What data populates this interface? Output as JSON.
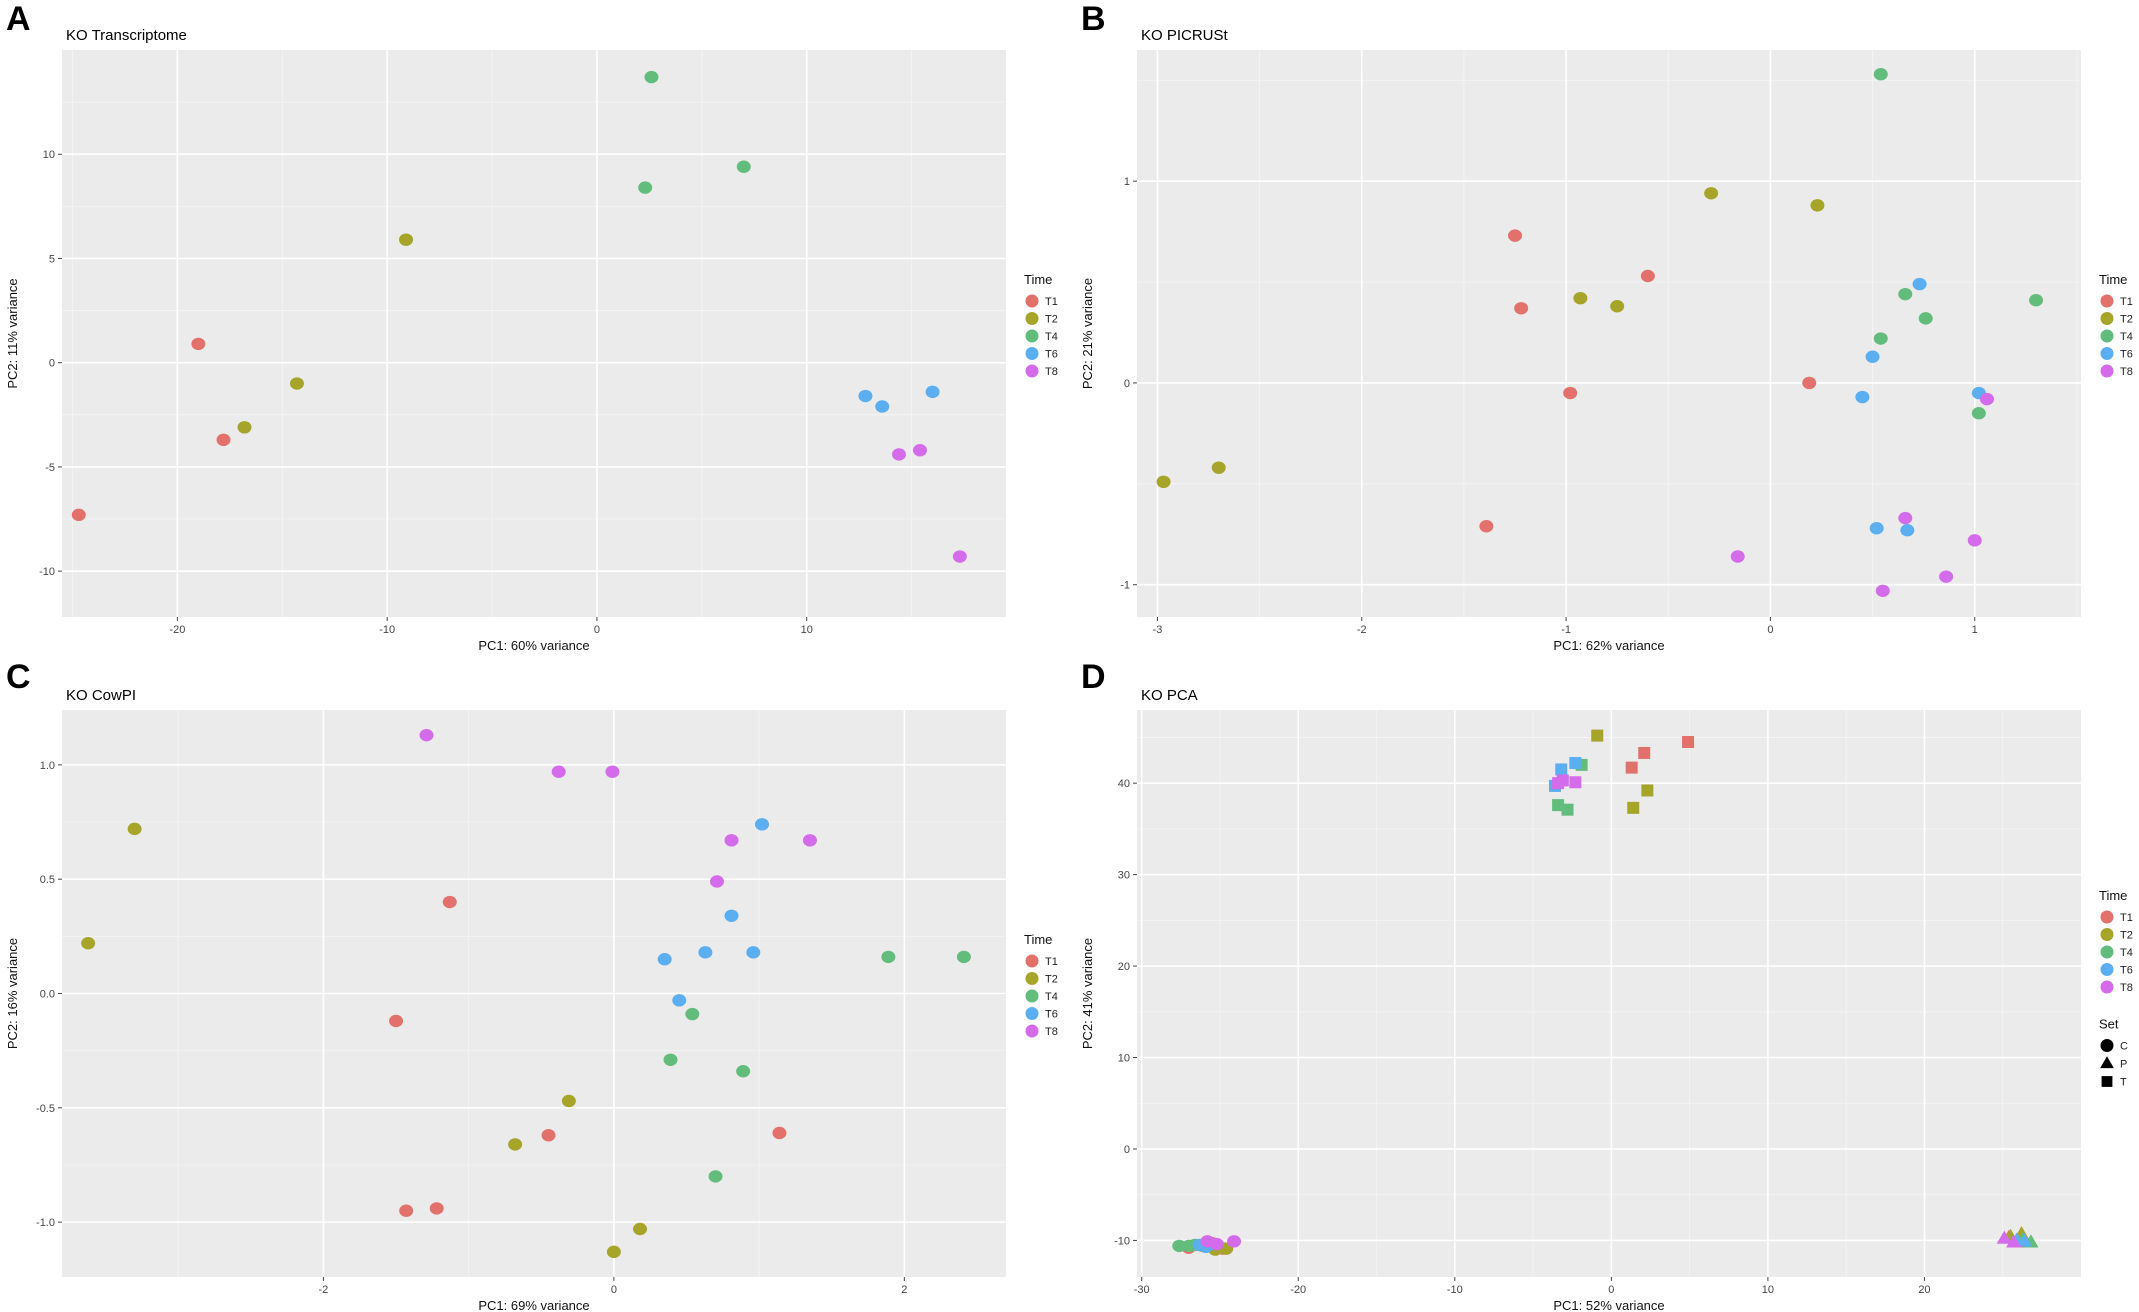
{
  "figure": {
    "letters": [
      "A",
      "B",
      "C",
      "D"
    ]
  },
  "colors": {
    "T1": "#E3716B",
    "T2": "#A7A42A",
    "T4": "#62BD7C",
    "T6": "#5BAEF0",
    "T8": "#D46BEA"
  },
  "chart_data": [
    {
      "type": "scatter",
      "title": "KO Transcriptome",
      "xlabel": "PC1: 60% variance",
      "ylabel": "PC2: 11% variance",
      "xlim": [
        -25.5,
        19.5
      ],
      "ylim": [
        -12.2,
        15
      ],
      "xticks": [
        -20,
        -10,
        0,
        10
      ],
      "yticks": [
        -10,
        -5,
        0,
        5,
        10
      ],
      "xtick_labels": [
        "-20",
        "-10",
        "0",
        "10"
      ],
      "ytick_labels": [
        "-10",
        "-5",
        "0",
        "5",
        "10"
      ],
      "legend": {
        "title": "Time",
        "entries": [
          "T1",
          "T2",
          "T4",
          "T6",
          "T8"
        ]
      },
      "series": [
        {
          "name": "T1",
          "points": [
            [
              -24.7,
              -7.3
            ],
            [
              -19,
              0.9
            ],
            [
              -17.8,
              -3.7
            ]
          ]
        },
        {
          "name": "T2",
          "points": [
            [
              -9.1,
              5.9
            ],
            [
              -14.3,
              -1
            ],
            [
              -16.8,
              -3.1
            ]
          ]
        },
        {
          "name": "T4",
          "points": [
            [
              2.6,
              13.7
            ],
            [
              7,
              9.4
            ],
            [
              2.3,
              8.4
            ]
          ]
        },
        {
          "name": "T6",
          "points": [
            [
              12.8,
              -1.6
            ],
            [
              13.6,
              -2.1
            ],
            [
              16,
              -1.4
            ]
          ]
        },
        {
          "name": "T8",
          "points": [
            [
              14.4,
              -4.4
            ],
            [
              15.4,
              -4.2
            ],
            [
              17.3,
              -9.3
            ]
          ]
        }
      ]
    },
    {
      "type": "scatter",
      "title": "KO PICRUSt",
      "xlabel": "PC1: 62% variance",
      "ylabel": "PC2: 21% variance",
      "xlim": [
        -3.1,
        1.52
      ],
      "ylim": [
        -1.16,
        1.65
      ],
      "xticks": [
        -3,
        -2,
        -1,
        0,
        1
      ],
      "yticks": [
        -1,
        0,
        1
      ],
      "xtick_labels": [
        "-3",
        "-2",
        "-1",
        "0",
        "1"
      ],
      "ytick_labels": [
        "-1",
        "0",
        "1"
      ],
      "legend": {
        "title": "Time",
        "entries": [
          "T1",
          "T2",
          "T4",
          "T6",
          "T8"
        ]
      },
      "series": [
        {
          "name": "T1",
          "points": [
            [
              -1.25,
              0.73
            ],
            [
              -1.22,
              0.37
            ],
            [
              -0.6,
              0.53
            ],
            [
              -0.98,
              -0.05
            ],
            [
              -1.39,
              -0.71
            ],
            [
              0.19,
              0
            ]
          ]
        },
        {
          "name": "T2",
          "points": [
            [
              -0.29,
              0.94
            ],
            [
              0.23,
              0.88
            ],
            [
              -0.93,
              0.42
            ],
            [
              -0.75,
              0.38
            ],
            [
              -2.97,
              -0.49
            ],
            [
              -2.7,
              -0.42
            ]
          ]
        },
        {
          "name": "T4",
          "points": [
            [
              0.54,
              1.53
            ],
            [
              0.66,
              0.44
            ],
            [
              0.76,
              0.32
            ],
            [
              0.54,
              0.22
            ],
            [
              1.3,
              0.41
            ],
            [
              1.02,
              -0.15
            ]
          ]
        },
        {
          "name": "T6",
          "points": [
            [
              0.73,
              0.49
            ],
            [
              0.5,
              0.13
            ],
            [
              0.45,
              -0.07
            ],
            [
              1.02,
              -0.05
            ],
            [
              0.52,
              -0.72
            ],
            [
              0.67,
              -0.73
            ]
          ]
        },
        {
          "name": "T8",
          "points": [
            [
              1.06,
              -0.08
            ],
            [
              0.66,
              -0.67
            ],
            [
              1,
              -0.78
            ],
            [
              -0.16,
              -0.86
            ],
            [
              0.86,
              -0.96
            ],
            [
              0.55,
              -1.03
            ]
          ]
        }
      ]
    },
    {
      "type": "scatter",
      "title": "KO CowPI",
      "xlabel": "PC1: 69% variance",
      "ylabel": "PC2: 16% variance",
      "xlim": [
        -3.8,
        2.7
      ],
      "ylim": [
        -1.24,
        1.24
      ],
      "xticks": [
        -2,
        0,
        2
      ],
      "yticks": [
        -1,
        -0.5,
        0,
        0.5,
        1
      ],
      "xtick_labels": [
        "-2",
        "0",
        "2"
      ],
      "ytick_labels": [
        "-1.0",
        "-0.5",
        "0.0",
        "0.5",
        "1.0"
      ],
      "legend": {
        "title": "Time",
        "entries": [
          "T1",
          "T2",
          "T4",
          "T6",
          "T8"
        ]
      },
      "series": [
        {
          "name": "T1",
          "points": [
            [
              -1.13,
              0.4
            ],
            [
              -1.5,
              -0.12
            ],
            [
              -0.45,
              -0.62
            ],
            [
              1.14,
              -0.61
            ],
            [
              -1.43,
              -0.95
            ],
            [
              -1.22,
              -0.94
            ]
          ]
        },
        {
          "name": "T2",
          "points": [
            [
              -3.3,
              0.72
            ],
            [
              -3.62,
              0.22
            ],
            [
              -0.31,
              -0.47
            ],
            [
              -0.68,
              -0.66
            ],
            [
              0.18,
              -1.03
            ],
            [
              0,
              -1.13
            ]
          ]
        },
        {
          "name": "T4",
          "points": [
            [
              1.89,
              0.16
            ],
            [
              2.41,
              0.16
            ],
            [
              0.54,
              -0.09
            ],
            [
              0.39,
              -0.29
            ],
            [
              0.89,
              -0.34
            ],
            [
              0.7,
              -0.8
            ]
          ]
        },
        {
          "name": "T6",
          "points": [
            [
              1.02,
              0.74
            ],
            [
              0.81,
              0.34
            ],
            [
              0.63,
              0.18
            ],
            [
              0.96,
              0.18
            ],
            [
              0.35,
              0.15
            ],
            [
              0.45,
              -0.03
            ]
          ]
        },
        {
          "name": "T8",
          "points": [
            [
              -1.29,
              1.13
            ],
            [
              -0.38,
              0.97
            ],
            [
              -0.01,
              0.97
            ],
            [
              0.81,
              0.67
            ],
            [
              1.35,
              0.67
            ],
            [
              0.71,
              0.49
            ]
          ]
        }
      ]
    },
    {
      "type": "scatter",
      "title": "KO PCA",
      "xlabel": "PC1: 52% variance",
      "ylabel": "PC2: 41% variance",
      "xlim": [
        -30.3,
        30
      ],
      "ylim": [
        -14,
        48
      ],
      "xticks": [
        -30,
        -20,
        -10,
        0,
        10,
        20
      ],
      "yticks": [
        -10,
        0,
        10,
        20,
        30,
        40
      ],
      "xtick_labels": [
        "-30",
        "-20",
        "-10",
        "0",
        "10",
        "20"
      ],
      "ytick_labels": [
        "-10",
        "0",
        "10",
        "20",
        "30",
        "40"
      ],
      "legend": {
        "title": "Time",
        "entries": [
          "T1",
          "T2",
          "T4",
          "T6",
          "T8"
        ]
      },
      "shape_legend": {
        "title": "Set",
        "entries": [
          {
            "label": "C",
            "shape": "circle"
          },
          {
            "label": "P",
            "shape": "triangle"
          },
          {
            "label": "T",
            "shape": "square"
          }
        ]
      },
      "series": [
        {
          "name": "T1",
          "shape": "square",
          "points": [
            [
              4.9,
              44.5
            ],
            [
              2.1,
              43.3
            ],
            [
              1.3,
              41.7
            ]
          ]
        },
        {
          "name": "T2",
          "shape": "square",
          "points": [
            [
              -0.9,
              45.2
            ],
            [
              2.3,
              39.2
            ],
            [
              1.4,
              37.3
            ]
          ]
        },
        {
          "name": "T4",
          "shape": "square",
          "points": [
            [
              -1.9,
              42
            ],
            [
              -3.4,
              37.6
            ],
            [
              -2.8,
              37.1
            ]
          ]
        },
        {
          "name": "T6",
          "shape": "square",
          "points": [
            [
              -2.3,
              42.2
            ],
            [
              -3.2,
              41.5
            ],
            [
              -3.6,
              39.7
            ]
          ]
        },
        {
          "name": "T8",
          "shape": "square",
          "points": [
            [
              -3.1,
              40.3
            ],
            [
              -2.3,
              40.1
            ],
            [
              -3.4,
              40
            ]
          ]
        },
        {
          "name": "T1",
          "shape": "circle",
          "points": [
            [
              -27,
              -10.8
            ],
            [
              -25.5,
              -10.3
            ],
            [
              -24.8,
              -10.9
            ]
          ]
        },
        {
          "name": "T2",
          "shape": "circle",
          "points": [
            [
              -25.3,
              -11
            ],
            [
              -24.6,
              -10.9
            ],
            [
              -26.1,
              -10.6
            ]
          ]
        },
        {
          "name": "T4",
          "shape": "circle",
          "points": [
            [
              -27.6,
              -10.6
            ],
            [
              -27,
              -10.6
            ],
            [
              -26.6,
              -10.5
            ]
          ]
        },
        {
          "name": "T6",
          "shape": "circle",
          "points": [
            [
              -26.3,
              -10.5
            ],
            [
              -25.9,
              -10.7
            ],
            [
              -25.6,
              -10.4
            ]
          ]
        },
        {
          "name": "T8",
          "shape": "circle",
          "points": [
            [
              -24.1,
              -10.1
            ],
            [
              -25.8,
              -10.1
            ],
            [
              -25.2,
              -10.4
            ]
          ]
        },
        {
          "name": "T1",
          "shape": "triangle",
          "points": [
            [
              25.4,
              -9.7
            ],
            [
              26.1,
              -10.2
            ]
          ]
        },
        {
          "name": "T2",
          "shape": "triangle",
          "points": [
            [
              26.2,
              -9.3
            ],
            [
              25.5,
              -9.6
            ]
          ]
        },
        {
          "name": "T4",
          "shape": "triangle",
          "points": [
            [
              26.8,
              -10.2
            ],
            [
              26.3,
              -9.9
            ]
          ]
        },
        {
          "name": "T6",
          "shape": "triangle",
          "points": [
            [
              25.9,
              -10
            ],
            [
              26.4,
              -10.1
            ]
          ]
        },
        {
          "name": "T8",
          "shape": "triangle",
          "points": [
            [
              25.1,
              -9.8
            ],
            [
              25.7,
              -10.2
            ]
          ]
        }
      ]
    }
  ]
}
